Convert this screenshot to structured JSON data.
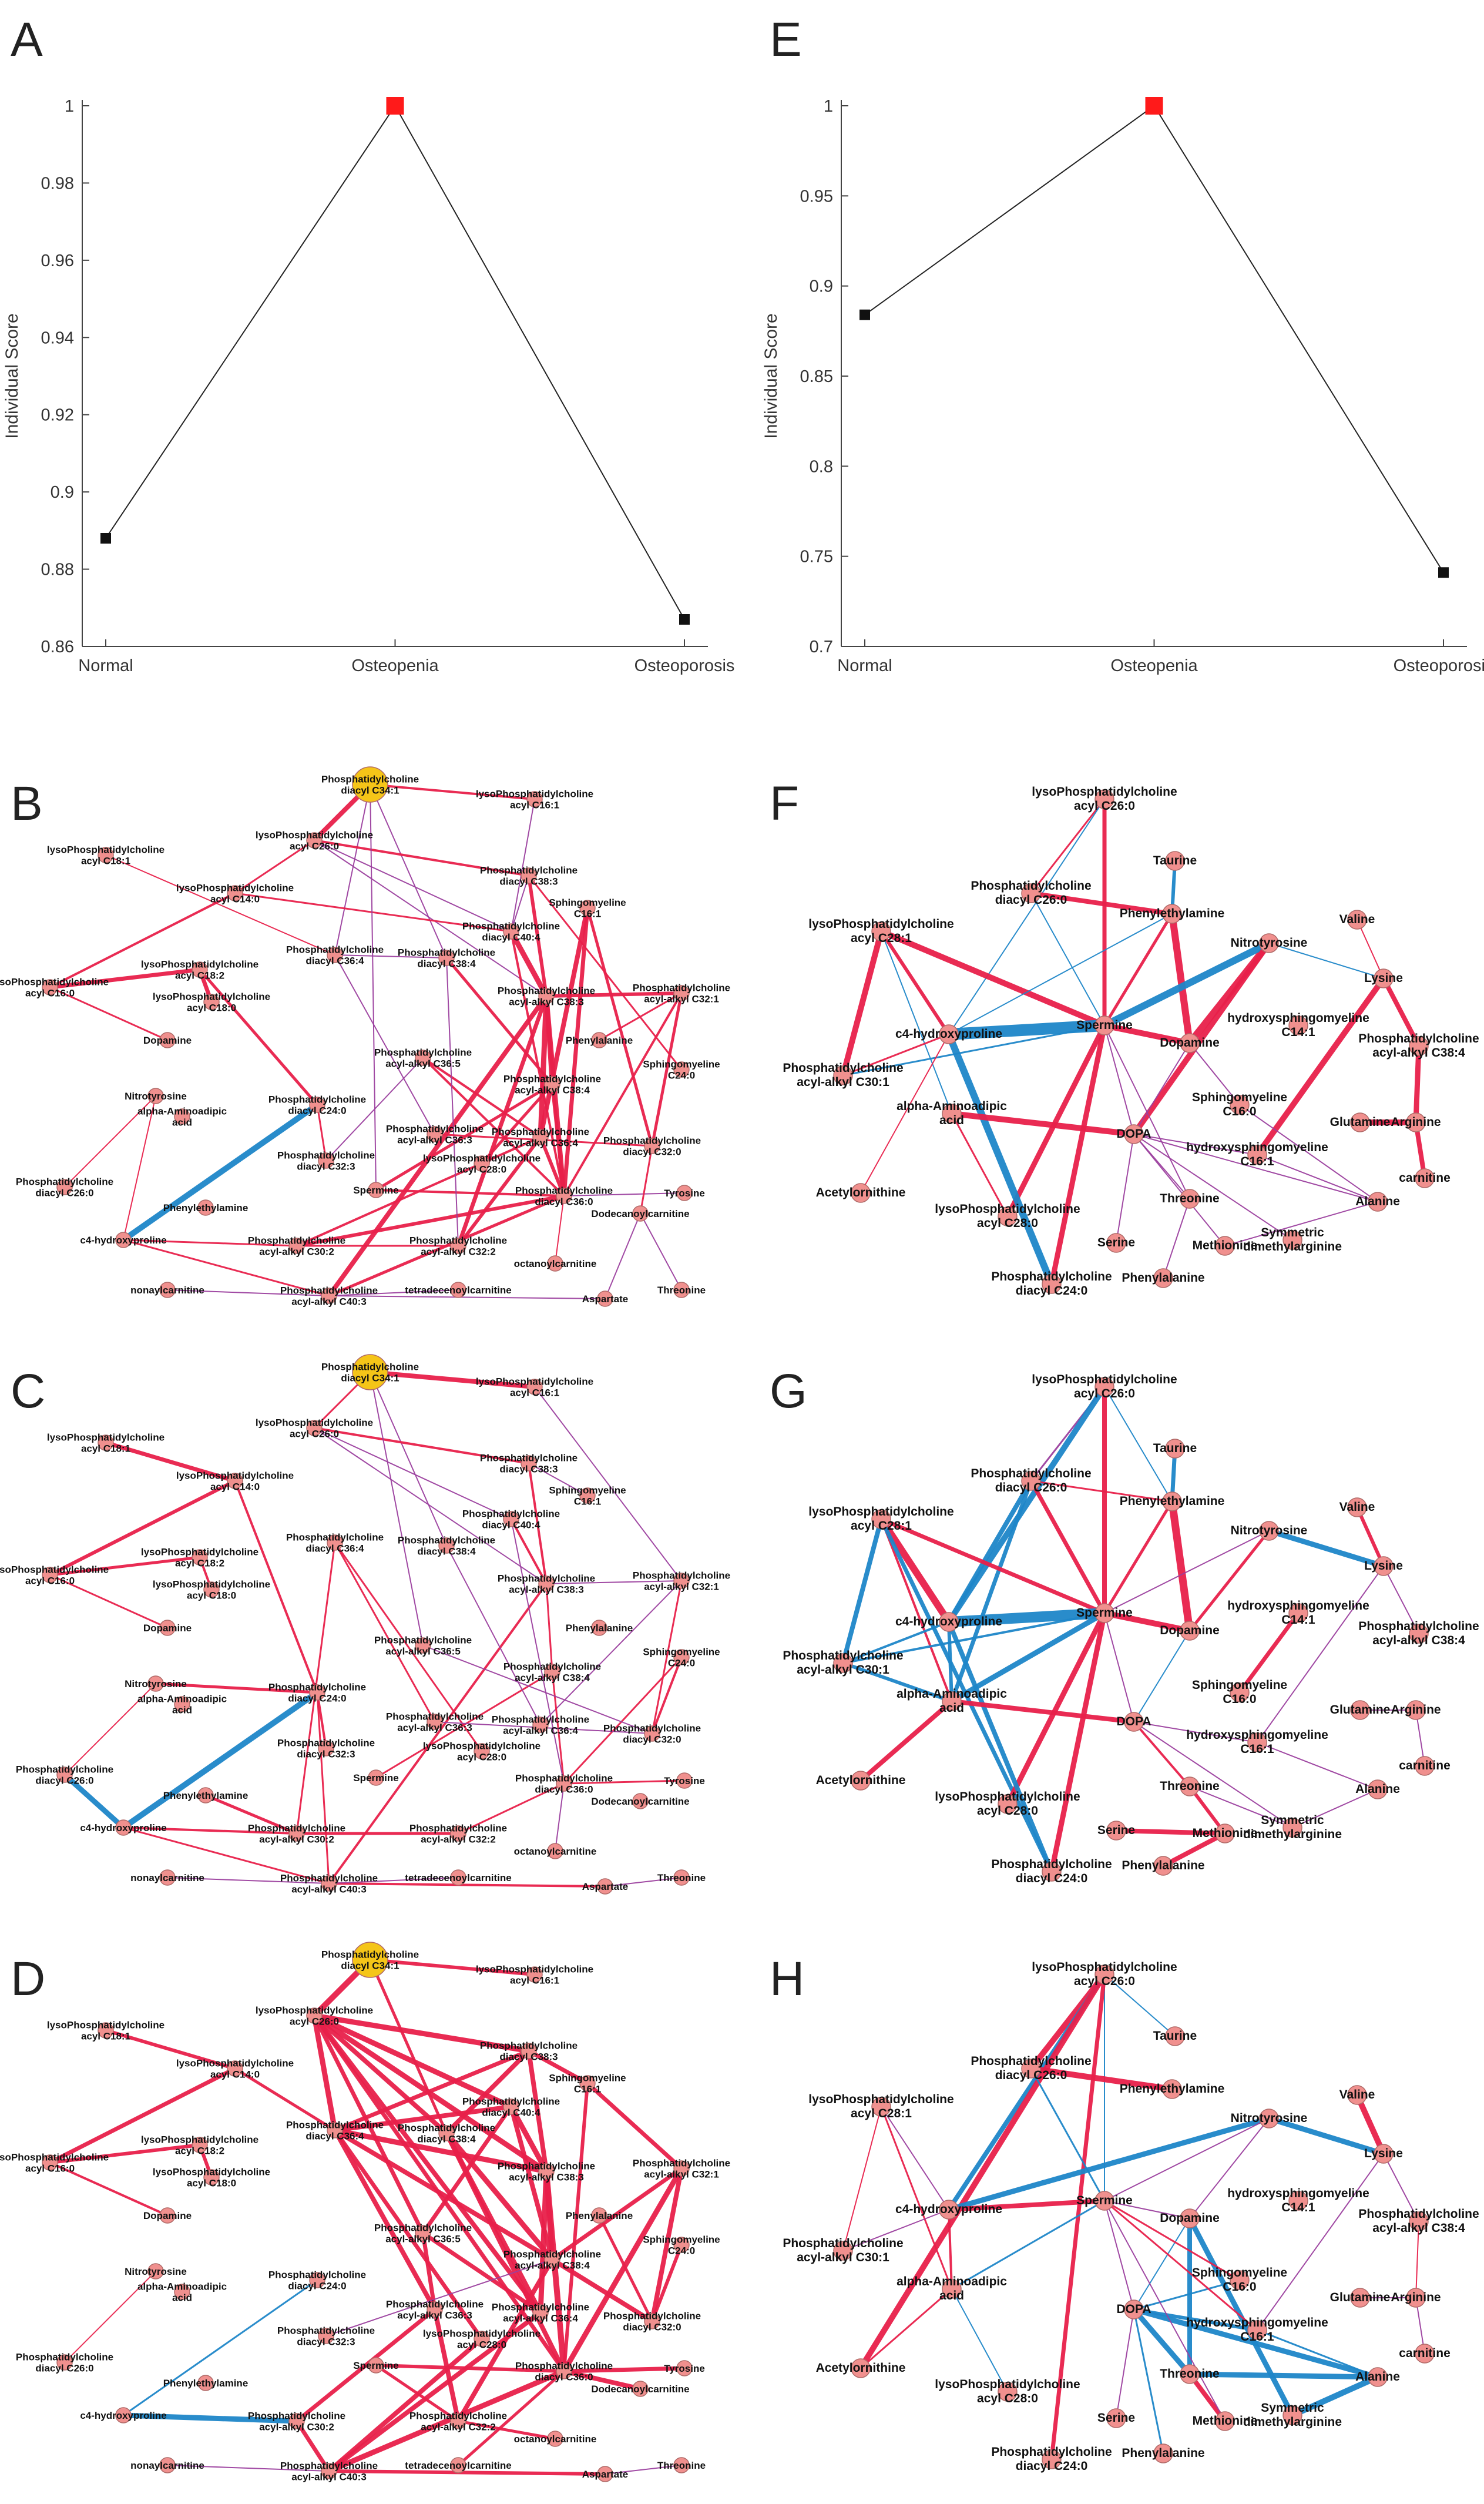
{
  "colors": {
    "positive": "#e8204a",
    "negative": "#1e86c8",
    "mixed": "#9b3f9e",
    "node": "#f0908e",
    "hub": "#f5c518",
    "marker_hi": "#ff1a1a",
    "marker": "#111111"
  },
  "chart_data": [
    {
      "id": "A",
      "type": "line",
      "title": "",
      "ylabel": "Individual Score",
      "categories": [
        "Normal",
        "Osteopenia",
        "Osteoporosis"
      ],
      "values": [
        0.888,
        1.0,
        0.867
      ],
      "ylim": [
        0.86,
        1.0
      ],
      "yticks": [
        "0.86",
        "0.88",
        "0.9",
        "0.92",
        "0.94",
        "0.96",
        "0.98",
        "1"
      ]
    },
    {
      "id": "E",
      "type": "line",
      "title": "",
      "ylabel": "Individual Score",
      "categories": [
        "Normal",
        "Osteopenia",
        "Osteoporosis"
      ],
      "values": [
        0.884,
        1.0,
        0.741
      ],
      "ylim": [
        0.7,
        1.0
      ],
      "yticks": [
        "0.7",
        "0.75",
        "0.8",
        "0.85",
        "0.9",
        "0.95",
        "1"
      ]
    },
    {
      "id": "B",
      "type": "network",
      "node_set": "left",
      "edge_set": "B"
    },
    {
      "id": "C",
      "type": "network",
      "node_set": "left",
      "edge_set": "C"
    },
    {
      "id": "D",
      "type": "network",
      "node_set": "left",
      "edge_set": "D"
    },
    {
      "id": "F",
      "type": "network",
      "node_set": "right",
      "edge_set": "F"
    },
    {
      "id": "G",
      "type": "network",
      "node_set": "right",
      "edge_set": "G"
    },
    {
      "id": "H",
      "type": "network",
      "node_set": "right",
      "edge_set": "H"
    }
  ],
  "panel_labels": {
    "A": "A",
    "B": "B",
    "C": "C",
    "D": "D",
    "E": "E",
    "F": "F",
    "G": "G",
    "H": "H"
  },
  "left_nodes": [
    {
      "id": "pc34",
      "label": [
        "Phosphatidylcholine",
        "diacyl C34:1"
      ],
      "hub": true
    },
    {
      "id": "lpc161",
      "label": [
        "lysoPhosphatidylcholine",
        "acyl C16:1"
      ]
    },
    {
      "id": "lpc260",
      "label": [
        "lysoPhosphatidylcholine",
        "acyl C26:0"
      ]
    },
    {
      "id": "lpc181",
      "label": [
        "lysoPhosphatidylcholine",
        "acyl C18:1"
      ]
    },
    {
      "id": "pc383",
      "label": [
        "Phosphatidylcholine",
        "diacyl C38:3"
      ]
    },
    {
      "id": "lpc140",
      "label": [
        "lysoPhosphatidylcholine",
        "acyl C14:0"
      ]
    },
    {
      "id": "sm161",
      "label": [
        "Sphingomyeline",
        "C16:1"
      ]
    },
    {
      "id": "pc404",
      "label": [
        "Phosphatidylcholine",
        "diacyl C40:4"
      ]
    },
    {
      "id": "pc364",
      "label": [
        "Phosphatidylcholine",
        "diacyl C36:4"
      ]
    },
    {
      "id": "pc384",
      "label": [
        "Phosphatidylcholine",
        "diacyl C38:4"
      ]
    },
    {
      "id": "lpc182",
      "label": [
        "lysoPhosphatidylcholine",
        "acyl C18:2"
      ]
    },
    {
      "id": "lpc160",
      "label": [
        "lysoPhosphatidylcholine",
        "acyl C16:0"
      ]
    },
    {
      "id": "pcaa321",
      "label": [
        "Phosphatidylcholine",
        "acyl-alkyl C32:1"
      ]
    },
    {
      "id": "pcaa383",
      "label": [
        "Phosphatidylcholine",
        "acyl-alkyl C38:3"
      ]
    },
    {
      "id": "lpc180",
      "label": [
        "lysoPhosphatidylcholine",
        "acyl C18:0"
      ]
    },
    {
      "id": "dopamine",
      "label": [
        "Dopamine"
      ]
    },
    {
      "id": "phe",
      "label": [
        "Phenylalanine"
      ]
    },
    {
      "id": "pcaa365",
      "label": [
        "Phosphatidylcholine",
        "acyl-alkyl C36:5"
      ]
    },
    {
      "id": "sm240",
      "label": [
        "Sphingomyeline",
        "C24:0"
      ]
    },
    {
      "id": "pcaa384",
      "label": [
        "Phosphatidylcholine",
        "acyl-alkyl C38:4"
      ]
    },
    {
      "id": "nitro",
      "label": [
        "Nitrotyrosine"
      ]
    },
    {
      "id": "pc240",
      "label": [
        "Phosphatidylcholine",
        "diacyl C24:0"
      ]
    },
    {
      "id": "aaa",
      "label": [
        "alpha-Aminoadipic",
        "acid"
      ]
    },
    {
      "id": "pcaa363",
      "label": [
        "Phosphatidylcholine",
        "acyl-alkyl C36:3"
      ]
    },
    {
      "id": "pcaa364",
      "label": [
        "Phosphatidylcholine",
        "acyl-alkyl C36:4"
      ]
    },
    {
      "id": "pc320",
      "label": [
        "Phosphatidylcholine",
        "diacyl C32:0"
      ]
    },
    {
      "id": "pc323",
      "label": [
        "Phosphatidylcholine",
        "diacyl C32:3"
      ]
    },
    {
      "id": "lpc280",
      "label": [
        "lysoPhosphatidylcholine",
        "acyl C28:0"
      ]
    },
    {
      "id": "spermine",
      "label": [
        "Spermine"
      ]
    },
    {
      "id": "pc260",
      "label": [
        "Phosphatidylcholine",
        "diacyl C26:0"
      ]
    },
    {
      "id": "pc360",
      "label": [
        "Phosphatidylcholine",
        "diacyl C36:0"
      ]
    },
    {
      "id": "tyr",
      "label": [
        "Tyrosine"
      ]
    },
    {
      "id": "pea",
      "label": [
        "Phenylethylamine"
      ]
    },
    {
      "id": "dodec",
      "label": [
        "Dodecanoylcarnitine"
      ]
    },
    {
      "id": "c4hyp",
      "label": [
        "c4-hydroxyproline"
      ]
    },
    {
      "id": "pcaa302",
      "label": [
        "Phosphatidylcholine",
        "acyl-alkyl C30:2"
      ]
    },
    {
      "id": "pcaa322",
      "label": [
        "Phosphatidylcholine",
        "acyl-alkyl C32:2"
      ]
    },
    {
      "id": "octan",
      "label": [
        "octanoylcarnitine"
      ]
    },
    {
      "id": "tetra",
      "label": [
        "tetradecenoylcarnitine"
      ]
    },
    {
      "id": "thr",
      "label": [
        "Threonine"
      ]
    },
    {
      "id": "nonayl",
      "label": [
        "nonaylcarnitine"
      ]
    },
    {
      "id": "pcaa403",
      "label": [
        "Phosphatidylcholine",
        "acyl-alkyl C40:3"
      ]
    },
    {
      "id": "asp",
      "label": [
        "Aspartate"
      ]
    }
  ],
  "right_nodes": [
    {
      "id": "lpc260",
      "label": [
        "lysoPhosphatidylcholine",
        "acyl C26:0"
      ]
    },
    {
      "id": "taurine",
      "label": [
        "Taurine"
      ]
    },
    {
      "id": "pc260",
      "label": [
        "Phosphatidylcholine",
        "diacyl C26:0"
      ]
    },
    {
      "id": "pea",
      "label": [
        "Phenylethylamine"
      ]
    },
    {
      "id": "lpc281",
      "label": [
        "lysoPhosphatidylcholine",
        "acyl C28:1"
      ]
    },
    {
      "id": "nitro",
      "label": [
        "Nitrotyrosine"
      ]
    },
    {
      "id": "valine",
      "label": [
        "Valine"
      ]
    },
    {
      "id": "lysine",
      "label": [
        "Lysine"
      ]
    },
    {
      "id": "spermine",
      "label": [
        "Spermine"
      ]
    },
    {
      "id": "c4hyp",
      "label": [
        "c4-hydroxyproline"
      ]
    },
    {
      "id": "dopamine",
      "label": [
        "Dopamine"
      ]
    },
    {
      "id": "hsm141",
      "label": [
        "hydroxysphingomyeline",
        "C14:1"
      ]
    },
    {
      "id": "pcaa384",
      "label": [
        "Phosphatidylcholine",
        "acyl-alkyl C38:4"
      ]
    },
    {
      "id": "pcaa301",
      "label": [
        "Phosphatidylcholine",
        "acyl-alkyl C30:1"
      ]
    },
    {
      "id": "aaa",
      "label": [
        "alpha-Aminoadipic",
        "acid"
      ]
    },
    {
      "id": "sm160",
      "label": [
        "Sphingomyeline",
        "C16:0"
      ]
    },
    {
      "id": "glutamine",
      "label": [
        "Glutamine"
      ]
    },
    {
      "id": "arginine",
      "label": [
        "Arginine"
      ]
    },
    {
      "id": "dopa",
      "label": [
        "DOPA"
      ]
    },
    {
      "id": "hsm161",
      "label": [
        "hydroxysphingomyeline",
        "C16:1"
      ]
    },
    {
      "id": "carnitine",
      "label": [
        "carnitine"
      ]
    },
    {
      "id": "acetyl",
      "label": [
        "Acetylornithine"
      ]
    },
    {
      "id": "threonine",
      "label": [
        "Threonine"
      ]
    },
    {
      "id": "alanine",
      "label": [
        "Alanine"
      ]
    },
    {
      "id": "lpc280",
      "label": [
        "lysoPhosphatidylcholine",
        "acyl C28:0"
      ]
    },
    {
      "id": "serine",
      "label": [
        "Serine"
      ]
    },
    {
      "id": "methionine",
      "label": [
        "Methionine"
      ]
    },
    {
      "id": "sdma",
      "label": [
        "Symmetric",
        "dimethylarginine"
      ]
    },
    {
      "id": "pc240",
      "label": [
        "Phosphatidylcholine",
        "diacyl C24:0"
      ]
    },
    {
      "id": "phe",
      "label": [
        "Phenylalanine"
      ]
    }
  ]
}
